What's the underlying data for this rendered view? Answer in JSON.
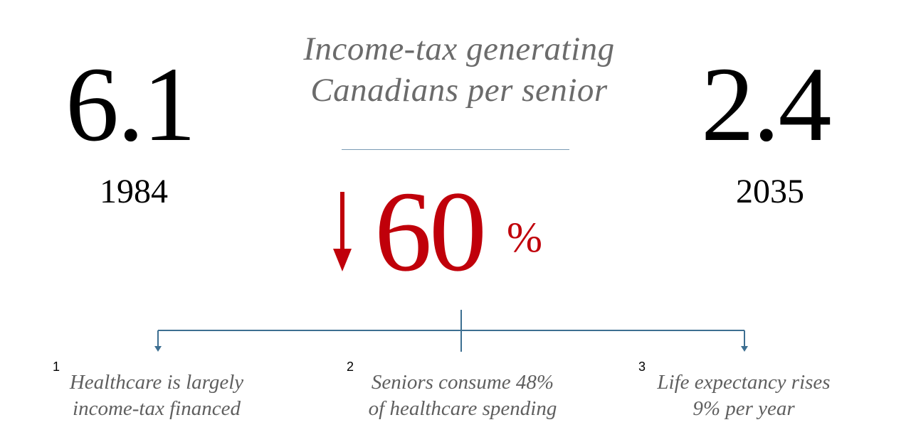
{
  "title": {
    "line1": "Income-tax generating",
    "line2": "Canadians per senior"
  },
  "left": {
    "value": "6.1",
    "year": "1984"
  },
  "right": {
    "value": "2.4",
    "year": "2035"
  },
  "change": {
    "direction": "down",
    "value": "60",
    "unit": "%"
  },
  "reasons": [
    {
      "number": "1",
      "line1": "Healthcare is largely",
      "line2": "income-tax financed"
    },
    {
      "number": "2",
      "line1": "Seniors consume 48%",
      "line2": "of healthcare spending"
    },
    {
      "number": "3",
      "line1": "Life expectancy rises",
      "line2": "9% per year"
    }
  ],
  "colors": {
    "accent_red": "#c0000a",
    "connector_blue": "#3d6f91",
    "title_gray": "#6b6b6b",
    "text_black": "#000000"
  },
  "icons": {
    "change_indicator": "down-arrow-icon",
    "connector": "branch-connector-icon"
  }
}
